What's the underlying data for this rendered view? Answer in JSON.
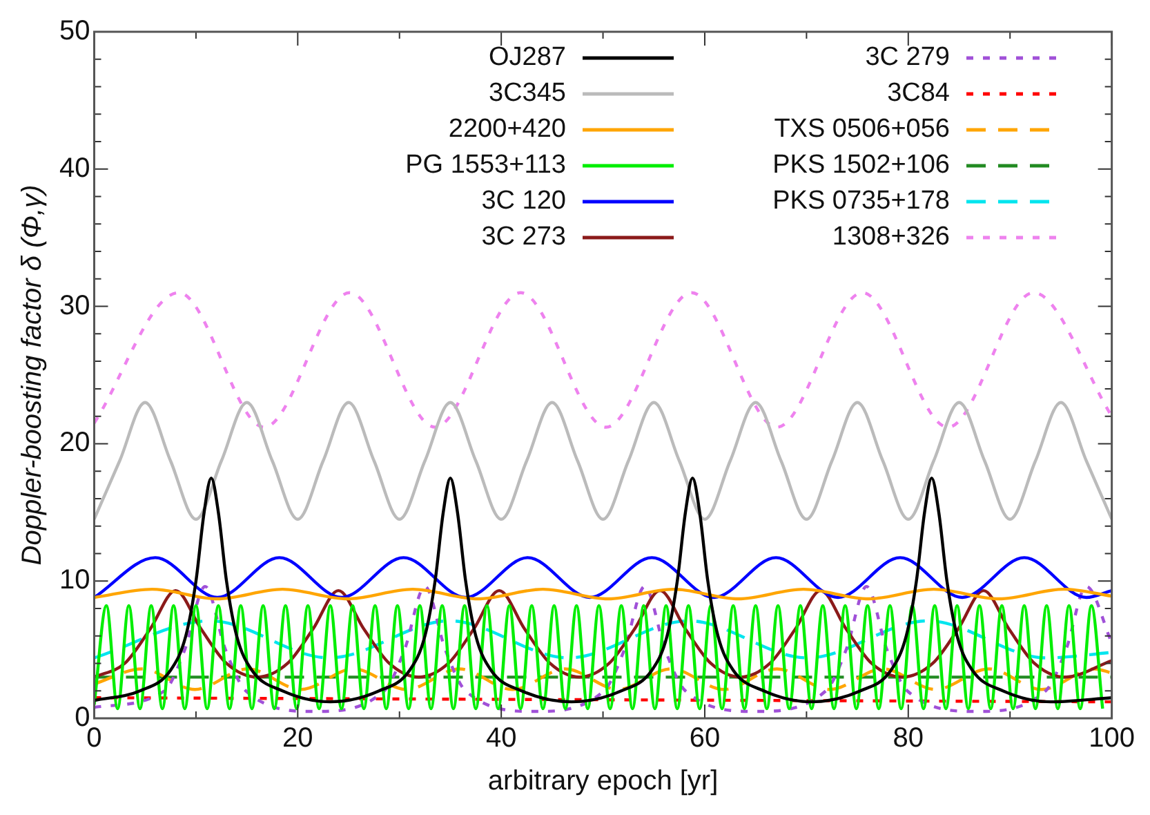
{
  "chart_data": {
    "type": "line",
    "xlabel": "arbitrary epoch [yr]",
    "ylabel": "Doppler-boosting factor δ (Φ,γ)",
    "xlim": [
      0,
      100
    ],
    "ylim": [
      0,
      50
    ],
    "xticks": [
      0,
      {
        "value": 10,
        "label": null
      },
      20,
      {
        "value": 30,
        "label": null
      },
      40,
      {
        "value": 50,
        "label": null
      },
      60,
      {
        "value": 70,
        "label": null
      },
      80,
      {
        "value": 90,
        "label": null
      },
      100
    ],
    "yticks": [
      0,
      {
        "value": 2,
        "label": null
      },
      {
        "value": 4,
        "label": null
      },
      {
        "value": 6,
        "label": null
      },
      {
        "value": 8,
        "label": null
      },
      10,
      {
        "value": 12,
        "label": null
      },
      {
        "value": 14,
        "label": null
      },
      {
        "value": 16,
        "label": null
      },
      {
        "value": 18,
        "label": null
      },
      20,
      {
        "value": 22,
        "label": null
      },
      {
        "value": 24,
        "label": null
      },
      {
        "value": 26,
        "label": null
      },
      {
        "value": 28,
        "label": null
      },
      30,
      {
        "value": 32,
        "label": null
      },
      {
        "value": 34,
        "label": null
      },
      {
        "value": 36,
        "label": null
      },
      {
        "value": 38,
        "label": null
      },
      40,
      {
        "value": 42,
        "label": null
      },
      {
        "value": 44,
        "label": null
      },
      {
        "value": 46,
        "label": null
      },
      {
        "value": 48,
        "label": null
      },
      50
    ],
    "grid": false,
    "legend": "top",
    "series": [
      {
        "name": "OJ287",
        "color": "#000000",
        "line_style": "solid",
        "x": [
          0,
          4.5,
          7.5,
          9,
          10,
          10.8,
          11.5,
          12.2,
          13,
          14,
          15.5,
          18.5,
          23.2,
          28,
          31,
          32.5,
          33.5,
          34.3,
          35,
          35.7,
          36.5,
          37.5,
          39,
          42,
          46.9,
          51.8,
          54.8,
          56.3,
          57.3,
          58.1,
          58.8,
          59.5,
          60.3,
          61.3,
          62.8,
          65.8,
          70.5,
          75.3,
          78.3,
          79.8,
          80.8,
          81.6,
          82.3,
          83,
          83.8,
          84.8,
          86.3,
          89.3,
          94,
          100
        ],
        "values": [
          1.3,
          2.0,
          3.5,
          6,
          10,
          15,
          17.5,
          15,
          10,
          6,
          3.5,
          2.0,
          1.2,
          2.0,
          3.5,
          6,
          10,
          15,
          17.5,
          15,
          10,
          6,
          3.5,
          2.0,
          1.2,
          2.0,
          3.5,
          6,
          10,
          15,
          17.5,
          15,
          10,
          6,
          3.5,
          2.0,
          1.2,
          2.0,
          3.5,
          6,
          10,
          15,
          17.5,
          15,
          10,
          6,
          3.5,
          2.0,
          1.2,
          1.5
        ]
      },
      {
        "name": "3C345",
        "color": "#bbbbbb",
        "line_style": "solid",
        "x": [
          0,
          2.5,
          5,
          7.5,
          10,
          12.5,
          15,
          17.5,
          20,
          22.5,
          25,
          27.5,
          30,
          32.5,
          35,
          37.5,
          40,
          42.5,
          45,
          47.5,
          50,
          52.5,
          55,
          57.5,
          60,
          62.5,
          65,
          67.5,
          70,
          72.5,
          75,
          77.5,
          80,
          82.5,
          85,
          87.5,
          90,
          92.5,
          95,
          97.5,
          100
        ],
        "values": [
          14.5,
          18.75,
          23,
          18.75,
          14.5,
          18.75,
          23,
          18.75,
          14.5,
          18.75,
          23,
          18.75,
          14.5,
          18.75,
          23,
          18.75,
          14.5,
          18.75,
          23,
          18.75,
          14.5,
          18.75,
          23,
          18.75,
          14.5,
          18.75,
          23,
          18.75,
          14.5,
          18.75,
          23,
          18.75,
          14.5,
          18.75,
          23,
          18.75,
          14.5,
          18.75,
          23,
          18.75,
          14.5
        ]
      },
      {
        "name": "2200+420",
        "color": "#ffa500",
        "line_style": "solid",
        "x": [
          0,
          5.7,
          12.1,
          18.5,
          24.9,
          31.3,
          37.7,
          44.1,
          50.5,
          56.9,
          63.3,
          69.7,
          76.1,
          82.5,
          88.9,
          95.3,
          100
        ],
        "values": [
          8.8,
          9.4,
          8.7,
          9.4,
          8.7,
          9.4,
          8.7,
          9.4,
          8.7,
          9.4,
          8.7,
          9.4,
          8.7,
          9.4,
          8.7,
          9.4,
          8.9
        ]
      },
      {
        "name": "PG 1553+113",
        "color": "#00ee00",
        "line_style": "solid",
        "x": [
          0,
          1.2,
          2.3,
          3.4,
          4.5,
          5.6,
          6.7,
          7.8,
          8.9,
          10,
          11.1,
          12.2,
          13.3,
          14.4,
          15.5,
          16.6,
          17.7,
          18.8,
          19.9,
          21,
          22.1,
          23.2,
          24.3,
          25.4,
          26.5,
          27.6,
          28.7,
          29.8,
          30.9,
          32,
          33.1,
          34.2,
          35.3,
          36.4,
          37.5,
          38.6,
          39.7,
          40.8,
          41.9,
          43,
          44.1,
          45.2,
          46.3,
          47.4,
          48.5,
          49.6,
          50.7,
          51.8,
          52.9,
          54,
          55.1,
          56.2,
          57.3,
          58.4,
          59.5,
          60.6,
          61.7,
          62.8,
          63.9,
          65,
          66.1,
          67.2,
          68.3,
          69.4,
          70.5,
          71.6,
          72.7,
          73.8,
          74.9,
          76,
          77.1,
          78.2,
          79.3,
          80.4,
          81.5,
          82.6,
          83.7,
          84.8,
          85.9,
          87,
          88.1,
          89.2,
          90.3,
          91.4,
          92.5,
          93.6,
          94.7,
          95.8,
          96.9,
          98,
          99.1
        ],
        "values": [
          1.0,
          8.2,
          0.7,
          8.2,
          0.7,
          8.2,
          0.7,
          8.2,
          0.7,
          8.2,
          0.7,
          8.2,
          0.7,
          8.2,
          0.7,
          8.2,
          0.7,
          8.2,
          0.7,
          8.2,
          0.7,
          8.2,
          0.7,
          8.2,
          0.7,
          8.2,
          0.7,
          8.2,
          0.7,
          8.2,
          0.7,
          8.2,
          0.7,
          8.2,
          0.7,
          8.2,
          0.7,
          8.2,
          0.7,
          8.2,
          0.7,
          8.2,
          0.7,
          8.2,
          0.7,
          8.2,
          0.7,
          8.2,
          0.7,
          8.2,
          0.7,
          8.2,
          0.7,
          8.2,
          0.7,
          8.2,
          0.7,
          8.2,
          0.7,
          8.2,
          0.7,
          8.2,
          0.7,
          8.2,
          0.7,
          8.2,
          0.7,
          8.2,
          0.7,
          8.2,
          0.7,
          8.2,
          0.7,
          8.2,
          0.7,
          8.2,
          0.7,
          8.2,
          0.7,
          8.2,
          0.7,
          8.2,
          0.7,
          8.2,
          0.7,
          8.2,
          0.7,
          8.2,
          0.7,
          8.2,
          0.7
        ]
      },
      {
        "name": "3C 120",
        "color": "#0000ff",
        "line_style": "solid",
        "x": [
          0,
          6.0,
          12.1,
          18.2,
          24.3,
          30.4,
          36.5,
          42.6,
          48.7,
          54.8,
          60.9,
          67.0,
          73.1,
          79.2,
          85.3,
          91.4,
          97.5,
          100
        ],
        "values": [
          8.8,
          11.7,
          8.8,
          11.7,
          8.8,
          11.7,
          8.8,
          11.7,
          8.8,
          11.7,
          8.8,
          11.7,
          8.8,
          11.7,
          8.8,
          11.7,
          8.8,
          9.3
        ]
      },
      {
        "name": "3C 273",
        "color": "#8b1a1a",
        "line_style": "solid",
        "x": [
          0,
          3,
          5.5,
          8,
          10.5,
          13,
          16,
          19,
          21.5,
          24,
          26.5,
          29,
          31.9,
          34.8,
          37.3,
          39.8,
          42.3,
          44.8,
          47.7,
          50.6,
          53.1,
          55.6,
          58.1,
          60.6,
          63.5,
          66.4,
          68.9,
          71.4,
          73.9,
          76.4,
          79.4,
          82.4,
          84.9,
          87.4,
          89.9,
          92.4,
          95.4,
          100
        ],
        "values": [
          3.0,
          4.0,
          6.5,
          9.3,
          6.5,
          4.0,
          3.0,
          4.0,
          6.5,
          9.3,
          6.5,
          4.0,
          3.0,
          4.0,
          6.5,
          9.3,
          6.5,
          4.0,
          3.0,
          4.0,
          6.5,
          9.3,
          6.5,
          4.0,
          3.0,
          4.0,
          6.5,
          9.3,
          6.5,
          4.0,
          3.0,
          4.0,
          6.5,
          9.3,
          6.5,
          4.0,
          3.0,
          4.2
        ]
      },
      {
        "name": "3C 279",
        "color": "#a050d8",
        "line_style": "dotted",
        "x": [
          0,
          6.9,
          8.9,
          10.9,
          12.9,
          14.9,
          21.7,
          28.5,
          30.5,
          32.5,
          34.5,
          36.5,
          43.3,
          50.1,
          52.1,
          54.1,
          56.1,
          58.1,
          65,
          71.9,
          73.9,
          75.9,
          77.9,
          79.9,
          86.7,
          93.5,
          95.5,
          97.5,
          100
        ],
        "values": [
          0.8,
          2.0,
          5.0,
          9.6,
          5.0,
          2.0,
          0.5,
          2.0,
          5.0,
          9.6,
          5.0,
          2.0,
          0.5,
          2.0,
          5.0,
          9.6,
          5.0,
          2.0,
          0.5,
          2.0,
          5.0,
          9.6,
          5.0,
          2.0,
          0.5,
          2.0,
          5.0,
          9.6,
          5.5
        ]
      },
      {
        "name": "3C84",
        "color": "#ff0000",
        "line_style": "dotted",
        "x": [
          0,
          100
        ],
        "values": [
          1.5,
          1.2
        ]
      },
      {
        "name": "TXS 0506+056",
        "color": "#ffa500",
        "line_style": "dashed",
        "x": [
          0,
          4.7,
          9.9,
          15.1,
          20.3,
          25.5,
          30.7,
          35.9,
          41.1,
          46.3,
          51.5,
          56.7,
          61.9,
          67.1,
          72.3,
          77.5,
          82.7,
          87.9,
          93.1,
          98.3,
          100
        ],
        "values": [
          2.5,
          3.6,
          2.1,
          3.6,
          2.1,
          3.6,
          2.1,
          3.6,
          2.1,
          3.6,
          2.1,
          3.6,
          2.1,
          3.6,
          2.1,
          3.6,
          2.1,
          3.6,
          2.1,
          3.6,
          3.3
        ]
      },
      {
        "name": "PKS 1502+106",
        "color": "#228b22",
        "line_style": "dashed",
        "x": [
          0,
          100
        ],
        "values": [
          3.0,
          3.0
        ]
      },
      {
        "name": "PKS 0735+178",
        "color": "#00e5ee",
        "line_style": "dashed",
        "x": [
          0,
          11.4,
          23.1,
          34.9,
          46.6,
          58.4,
          70.1,
          81.9,
          93.6,
          100
        ],
        "values": [
          4.4,
          7.1,
          4.4,
          7.1,
          4.4,
          7.1,
          4.4,
          7.1,
          4.4,
          4.8
        ]
      },
      {
        "name": "1308+326",
        "color": "#ee82ee",
        "line_style": "dotted",
        "x": [
          0,
          8.3,
          16.7,
          25.1,
          33.5,
          41.9,
          50.3,
          58.7,
          67.1,
          75.5,
          83.9,
          92.3,
          100
        ],
        "values": [
          21.5,
          31.0,
          21.2,
          31.0,
          21.2,
          31.0,
          21.2,
          31.0,
          21.2,
          31.0,
          21.2,
          31.0,
          22.0
        ]
      }
    ]
  }
}
